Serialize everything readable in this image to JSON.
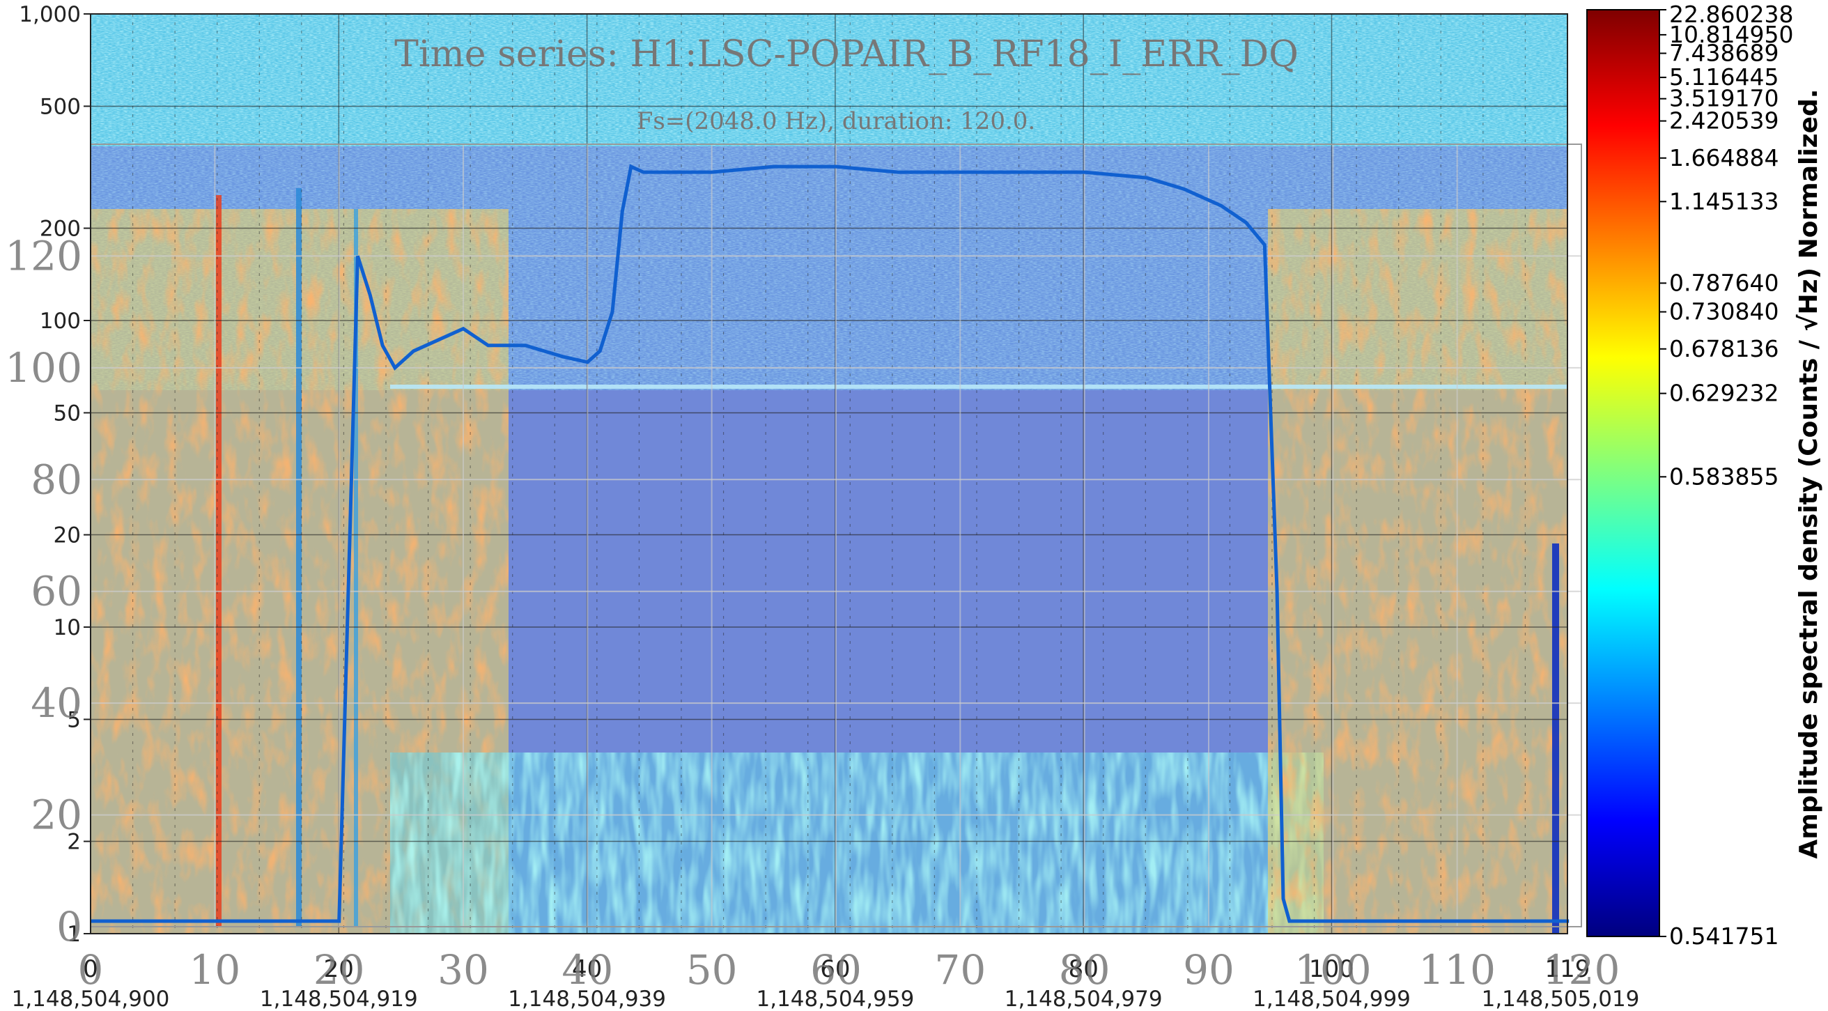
{
  "chart_data": {
    "type": "heatmap",
    "title": "Time series: H1:LSC-POPAIR_B_RF18_I_ERR_DQ",
    "subtitle": "Fs=(2048.0 Hz), duration: 120.0.",
    "colorbar": {
      "label": "Amplitude spectral density (Counts / √Hz) Normalized.",
      "ticks": [
        "22.860238",
        "10.814950",
        "7.438689",
        "5.116445",
        "3.519170",
        "2.420539",
        "1.664884",
        "1.145133",
        "0.787640",
        "0.730840",
        "0.678136",
        "0.629232",
        "0.583855",
        "0.541751"
      ]
    },
    "spectrogram_axes": {
      "y_scale": "log",
      "y_ticks": [
        "1,000",
        "500",
        "200",
        "100",
        "50",
        "20",
        "10",
        "5",
        "2",
        "1"
      ],
      "x_ticks": [
        "0",
        "20",
        "40",
        "60",
        "80",
        "100",
        "119"
      ],
      "x_gps_ticks": [
        "1,148,504,900",
        "1,148,504,919",
        "1,148,504,939",
        "1,148,504,959",
        "1,148,504,979",
        "1,148,504,999",
        "1,148,505,019"
      ]
    },
    "overlay_axes": {
      "y_ticks": [
        "120",
        "100",
        "80",
        "60",
        "40",
        "20",
        "0"
      ],
      "x_ticks": [
        "0",
        "10",
        "20",
        "30",
        "40",
        "50",
        "60",
        "70",
        "80",
        "90",
        "100",
        "110",
        "120"
      ],
      "ylim": [
        0,
        140
      ],
      "xlim": [
        0,
        120
      ]
    },
    "overlay_series": {
      "color": "#1060d0",
      "x": [
        0,
        5,
        10,
        15,
        20,
        21.5,
        22.5,
        23.5,
        24.5,
        26,
        28,
        30,
        32,
        35,
        38,
        40,
        41,
        42,
        42.8,
        43.5,
        44.5,
        46,
        50,
        55,
        60,
        65,
        70,
        75,
        80,
        85,
        88,
        91,
        93,
        94.5,
        95.5,
        96,
        96.5,
        100,
        105,
        110,
        115,
        118,
        119
      ],
      "y": [
        1,
        1,
        1,
        1,
        1,
        120,
        113,
        104,
        100,
        103,
        105,
        107,
        104,
        104,
        102,
        101,
        103,
        110,
        128,
        136,
        135,
        135,
        135,
        136,
        136,
        135,
        135,
        135,
        135,
        134,
        132,
        129,
        126,
        122,
        60,
        5,
        1,
        1,
        1,
        1,
        1,
        1,
        1
      ]
    }
  }
}
